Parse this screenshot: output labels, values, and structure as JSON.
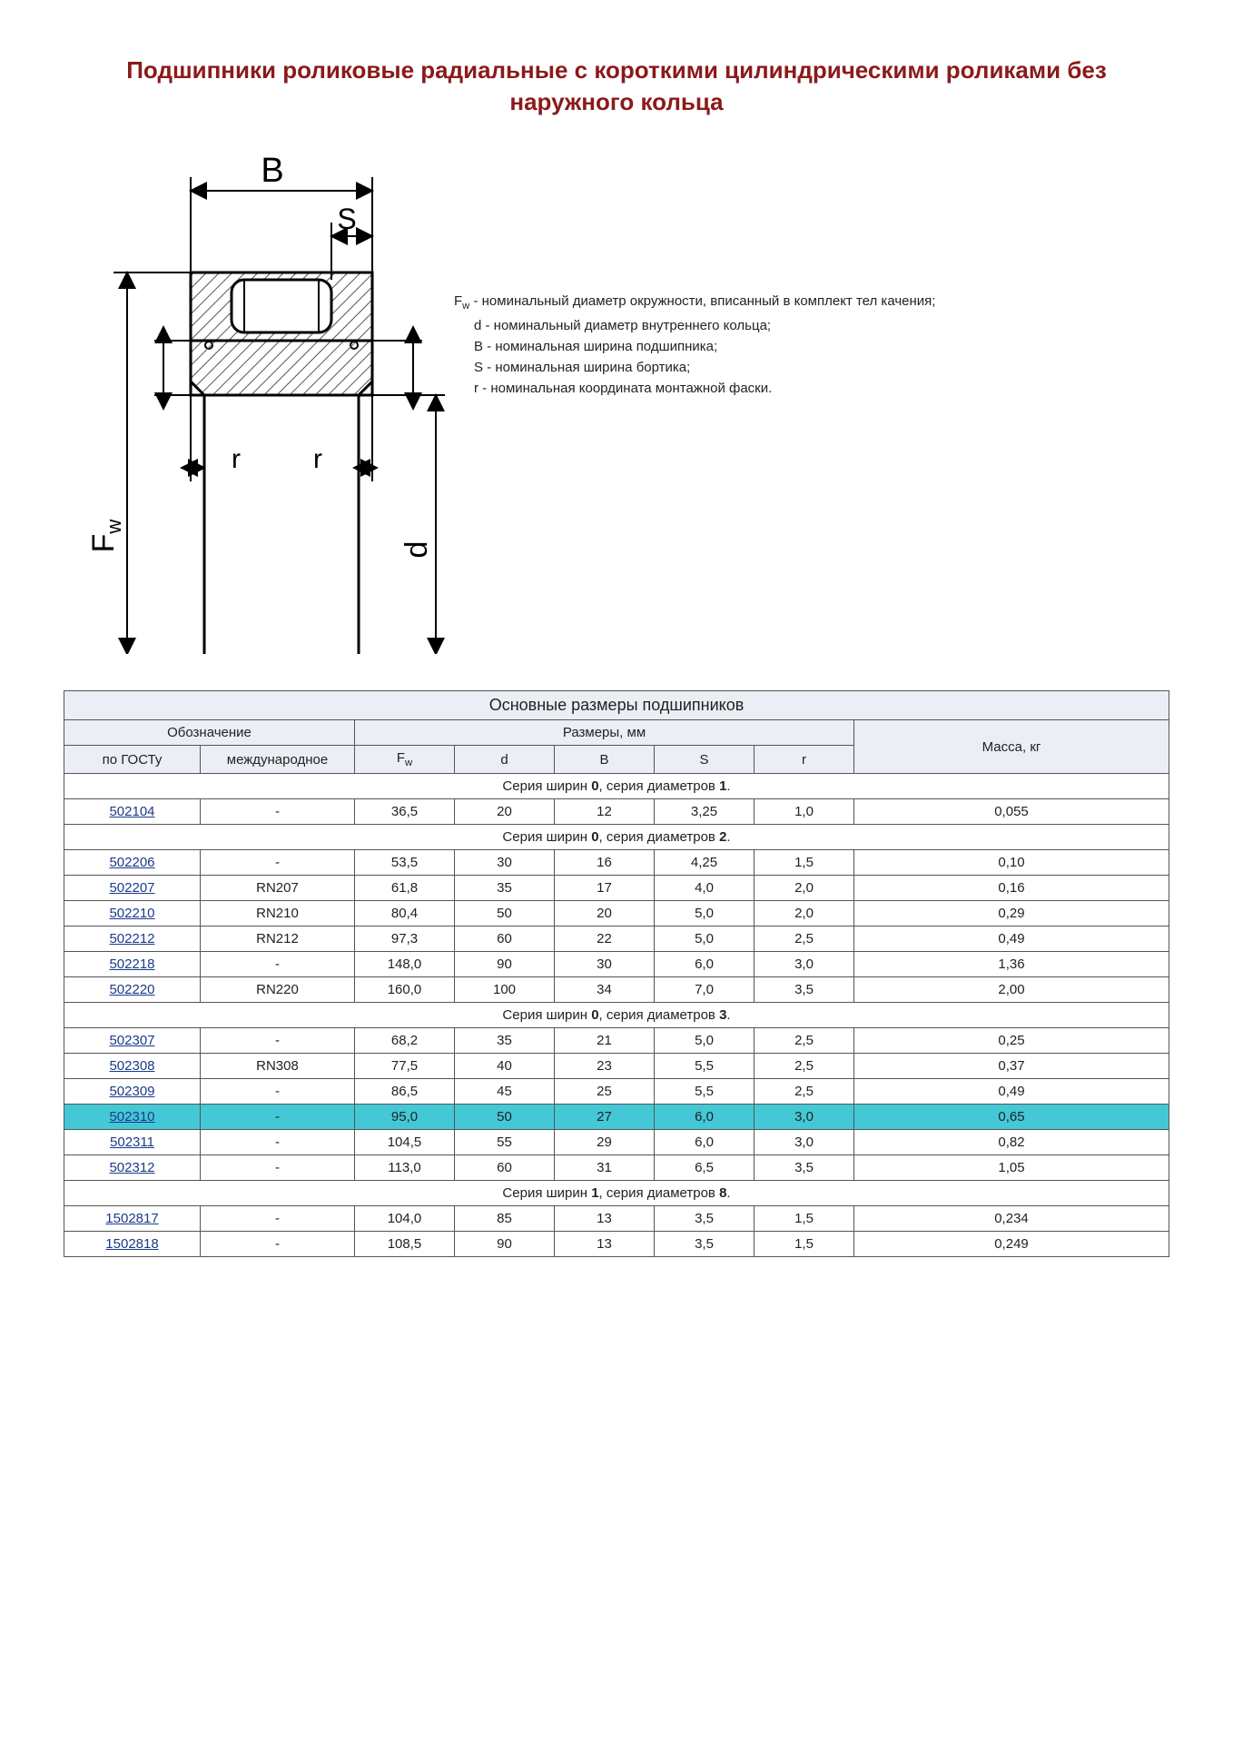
{
  "title": "Подшипники роликовые радиальные с короткими цилиндрическими роликами без наружного кольца",
  "diagram": {
    "labels": {
      "B": "B",
      "S": "S",
      "r1": "r",
      "r2": "r",
      "Fw": "F",
      "Fw_sub": "w",
      "d": "d"
    },
    "stroke": "#000000",
    "hatch": "#555555",
    "label_fontsize": 30
  },
  "legend": {
    "Fw_pre": "F",
    "Fw_sub": "w",
    "Fw": " - номинальный диаметр окружности, вписанный в комплект тел качения;",
    "d": "d - номинальный диаметр внутреннего кольца;",
    "B": "B - номинальная ширина подшипника;",
    "S": "S - номинальная ширина бортика;",
    "r": "r - номинальная координата монтажной фаски."
  },
  "table": {
    "caption": "Основные размеры подшипников",
    "headers": {
      "design": "Обозначение",
      "dims": "Размеры, мм",
      "mass": "Масса, кг",
      "gost": "по ГОСТу",
      "intl": "международное",
      "Fw_pre": "F",
      "Fw_sub": "w",
      "d": "d",
      "B": "B",
      "S": "S",
      "r": "r"
    },
    "series": [
      {
        "label_pre": "Серия ширин ",
        "label_b1": "0",
        "label_mid": ", серия диаметров ",
        "label_b2": "1",
        "label_post": ".",
        "rows": [
          {
            "gost": "502104",
            "intl": "-",
            "Fw": "36,5",
            "d": "20",
            "B": "12",
            "S": "3,25",
            "r": "1,0",
            "mass": "0,055",
            "hl": false
          }
        ]
      },
      {
        "label_pre": "Серия ширин ",
        "label_b1": "0",
        "label_mid": ", серия диаметров ",
        "label_b2": "2",
        "label_post": ".",
        "rows": [
          {
            "gost": "502206",
            "intl": "-",
            "Fw": "53,5",
            "d": "30",
            "B": "16",
            "S": "4,25",
            "r": "1,5",
            "mass": "0,10",
            "hl": false
          },
          {
            "gost": "502207",
            "intl": "RN207",
            "Fw": "61,8",
            "d": "35",
            "B": "17",
            "S": "4,0",
            "r": "2,0",
            "mass": "0,16",
            "hl": false
          },
          {
            "gost": "502210",
            "intl": "RN210",
            "Fw": "80,4",
            "d": "50",
            "B": "20",
            "S": "5,0",
            "r": "2,0",
            "mass": "0,29",
            "hl": false
          },
          {
            "gost": "502212",
            "intl": "RN212",
            "Fw": "97,3",
            "d": "60",
            "B": "22",
            "S": "5,0",
            "r": "2,5",
            "mass": "0,49",
            "hl": false
          },
          {
            "gost": "502218",
            "intl": "-",
            "Fw": "148,0",
            "d": "90",
            "B": "30",
            "S": "6,0",
            "r": "3,0",
            "mass": "1,36",
            "hl": false
          },
          {
            "gost": "502220",
            "intl": "RN220",
            "Fw": "160,0",
            "d": "100",
            "B": "34",
            "S": "7,0",
            "r": "3,5",
            "mass": "2,00",
            "hl": false
          }
        ]
      },
      {
        "label_pre": "Серия ширин ",
        "label_b1": "0",
        "label_mid": ", серия диаметров ",
        "label_b2": "3",
        "label_post": ".",
        "rows": [
          {
            "gost": "502307",
            "intl": "-",
            "Fw": "68,2",
            "d": "35",
            "B": "21",
            "S": "5,0",
            "r": "2,5",
            "mass": "0,25",
            "hl": false
          },
          {
            "gost": "502308",
            "intl": "RN308",
            "Fw": "77,5",
            "d": "40",
            "B": "23",
            "S": "5,5",
            "r": "2,5",
            "mass": "0,37",
            "hl": false
          },
          {
            "gost": "502309",
            "intl": "-",
            "Fw": "86,5",
            "d": "45",
            "B": "25",
            "S": "5,5",
            "r": "2,5",
            "mass": "0,49",
            "hl": false
          },
          {
            "gost": "502310",
            "intl": "-",
            "Fw": "95,0",
            "d": "50",
            "B": "27",
            "S": "6,0",
            "r": "3,0",
            "mass": "0,65",
            "hl": true
          },
          {
            "gost": "502311",
            "intl": "-",
            "Fw": "104,5",
            "d": "55",
            "B": "29",
            "S": "6,0",
            "r": "3,0",
            "mass": "0,82",
            "hl": false
          },
          {
            "gost": "502312",
            "intl": "-",
            "Fw": "113,0",
            "d": "60",
            "B": "31",
            "S": "6,5",
            "r": "3,5",
            "mass": "1,05",
            "hl": false
          }
        ]
      },
      {
        "label_pre": "Серия ширин ",
        "label_b1": "1",
        "label_mid": ", серия диаметров ",
        "label_b2": "8",
        "label_post": ".",
        "rows": [
          {
            "gost": "1502817",
            "intl": "-",
            "Fw": "104,0",
            "d": "85",
            "B": "13",
            "S": "3,5",
            "r": "1,5",
            "mass": "0,234",
            "hl": false
          },
          {
            "gost": "1502818",
            "intl": "-",
            "Fw": "108,5",
            "d": "90",
            "B": "13",
            "S": "3,5",
            "r": "1,5",
            "mass": "0,249",
            "hl": false
          }
        ]
      }
    ],
    "col_widths": [
      "150",
      "170",
      "110",
      "110",
      "110",
      "110",
      "110",
      "auto"
    ],
    "highlight_color": "#44c8d6",
    "header_bg": "#eceef5",
    "caption_bg": "#e4e2f0",
    "link_color": "#1a3a8a"
  }
}
